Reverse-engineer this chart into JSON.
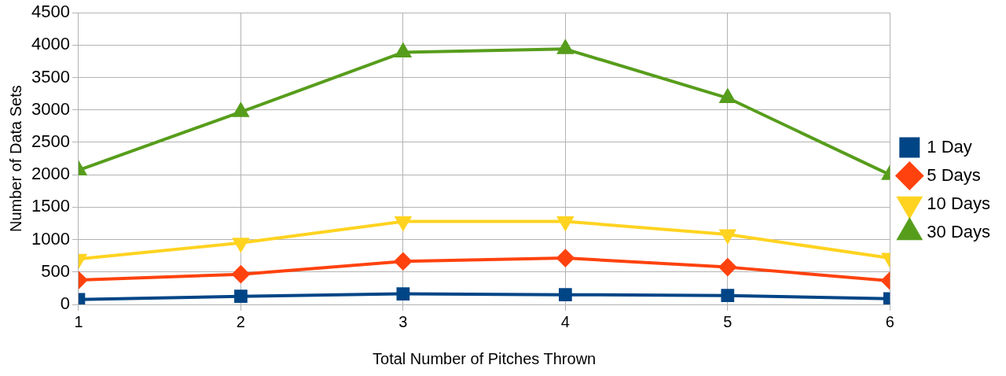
{
  "chart_data": {
    "type": "line",
    "xlabel": "Total Number of Pitches Thrown",
    "ylabel": "Number of Data Sets",
    "x": [
      1,
      2,
      3,
      4,
      5,
      6
    ],
    "xlim": [
      1,
      6
    ],
    "xticks": [
      1,
      2,
      3,
      4,
      5,
      6
    ],
    "ylim": [
      0,
      4500
    ],
    "yticks": [
      0,
      500,
      1000,
      1500,
      2000,
      2500,
      3000,
      3500,
      4000,
      4500
    ],
    "grid": true,
    "legend": "right",
    "line_style": "solid",
    "series": [
      {
        "name": "1 Day",
        "color": "#004586",
        "marker": "square",
        "values": [
          75,
          125,
          163,
          150,
          138,
          88
        ]
      },
      {
        "name": "5 Days",
        "color": "#ff420e",
        "marker": "diamond",
        "values": [
          375,
          465,
          665,
          715,
          575,
          365
        ]
      },
      {
        "name": "10 Days",
        "color": "#ffd320",
        "marker": "triangle-down",
        "values": [
          700,
          950,
          1280,
          1280,
          1080,
          715
        ]
      },
      {
        "name": "30 Days",
        "color": "#579d1c",
        "marker": "triangle",
        "values": [
          2070,
          2970,
          3890,
          3940,
          3185,
          2000
        ]
      }
    ]
  }
}
